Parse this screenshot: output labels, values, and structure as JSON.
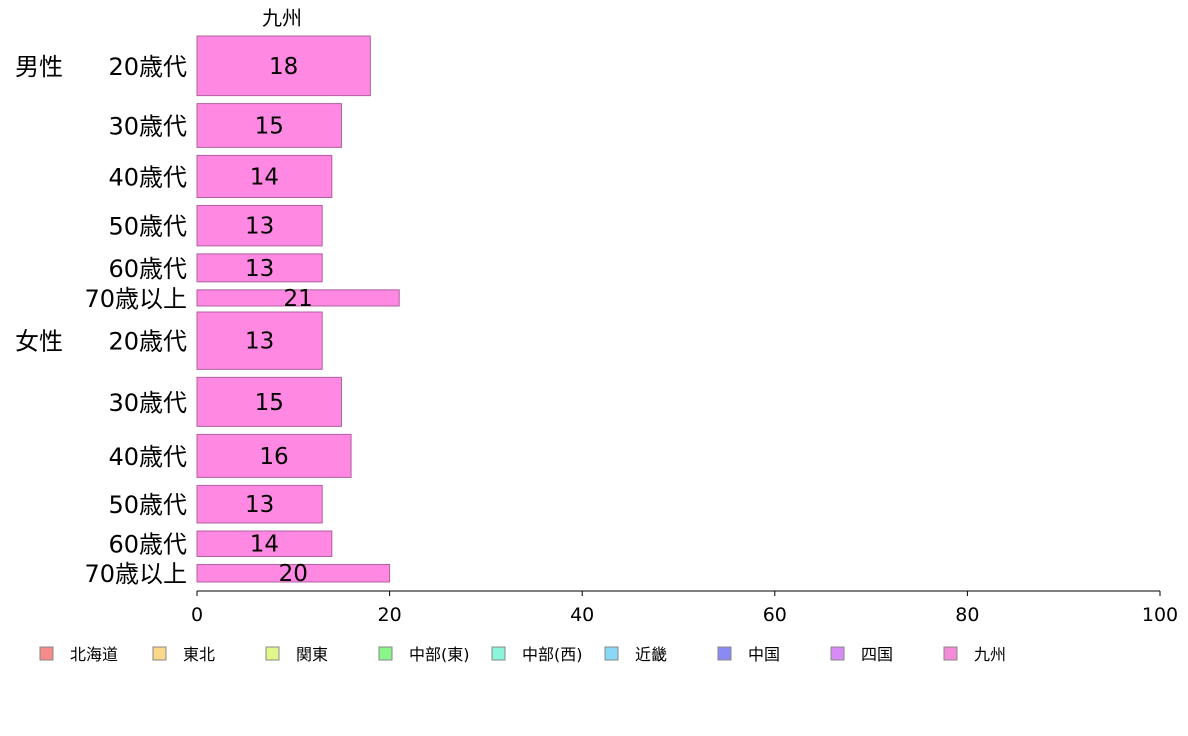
{
  "chart_data": {
    "type": "bar",
    "orientation": "horizontal",
    "panel_title": "九州",
    "groups": [
      {
        "label": "男性",
        "categories": [
          "20歳代",
          "30歳代",
          "40歳代",
          "50歳代",
          "60歳代",
          "70歳以上"
        ],
        "values": [
          18,
          15,
          14,
          13,
          13,
          21
        ],
        "bar_width_share": [
          0.177,
          0.13,
          0.125,
          0.12,
          0.083,
          0.048
        ]
      },
      {
        "label": "女性",
        "categories": [
          "20歳代",
          "30歳代",
          "40歳代",
          "50歳代",
          "60歳代",
          "70歳以上"
        ],
        "values": [
          13,
          15,
          16,
          13,
          14,
          20
        ],
        "bar_width_share": [
          0.18,
          0.154,
          0.135,
          0.118,
          0.08,
          0.055
        ]
      }
    ],
    "data_labels": [
      [
        "18",
        "15",
        "14",
        "13",
        "13",
        "21"
      ],
      [
        "13",
        "15",
        "16",
        "13",
        "14",
        "20"
      ]
    ],
    "xlim": [
      0,
      100
    ],
    "xticks": [
      0,
      20,
      40,
      60,
      80,
      100
    ],
    "series_color": "#ff88e2",
    "legend_position": "bottom",
    "legend": [
      {
        "name": "北海道",
        "color": "#f78a8a"
      },
      {
        "name": "東北",
        "color": "#fcd98a"
      },
      {
        "name": "関東",
        "color": "#e0f88a"
      },
      {
        "name": "中部(東)",
        "color": "#8af58a"
      },
      {
        "name": "中部(西)",
        "color": "#8af5d8"
      },
      {
        "name": "近畿",
        "color": "#8ad8f5"
      },
      {
        "name": "中国",
        "color": "#8a8af5"
      },
      {
        "name": "四国",
        "color": "#d88af5"
      },
      {
        "name": "九州",
        "color": "#f58ad8"
      }
    ]
  }
}
